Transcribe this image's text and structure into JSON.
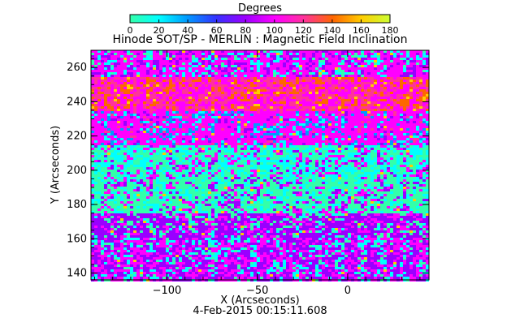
{
  "chart_data": {
    "type": "heatmap",
    "title": "Hinode SOT/SP - MERLIN : Magnetic Field Inclination",
    "xlabel": "X (Arcseconds)",
    "ylabel": "Y (Arcseconds)",
    "timestamp": "4-Feb-2015 00:15:11.608",
    "xlim": [
      -142,
      45
    ],
    "ylim": [
      136,
      270
    ],
    "x_ticks": [
      -100,
      -50,
      0
    ],
    "y_ticks": [
      140,
      160,
      180,
      200,
      220,
      240,
      260
    ],
    "colorbar": {
      "label": "Degrees",
      "range": [
        0,
        180
      ],
      "ticks": [
        0,
        20,
        40,
        60,
        80,
        100,
        120,
        140,
        160,
        180
      ],
      "colors": [
        "#33ffaa",
        "#00ffff",
        "#0099ff",
        "#3333ff",
        "#9900ff",
        "#ff00ff",
        "#ff3399",
        "#ff6600",
        "#ffcc00",
        "#ccff33"
      ]
    },
    "bands": [
      {
        "y_range": [
          136,
          160
        ],
        "dominant_deg": 100,
        "secondary_deg": 25
      },
      {
        "y_range": [
          160,
          175
        ],
        "dominant_deg": 95,
        "secondary_deg": 15
      },
      {
        "y_range": [
          175,
          195
        ],
        "dominant_deg": 15,
        "secondary_deg": 100
      },
      {
        "y_range": [
          195,
          215
        ],
        "dominant_deg": 20,
        "secondary_deg": 105
      },
      {
        "y_range": [
          215,
          235
        ],
        "dominant_deg": 110,
        "secondary_deg": 40
      },
      {
        "y_range": [
          235,
          255
        ],
        "dominant_deg": 120,
        "secondary_deg": 150
      },
      {
        "y_range": [
          255,
          270
        ],
        "dominant_deg": 105,
        "secondary_deg": 25
      }
    ]
  }
}
